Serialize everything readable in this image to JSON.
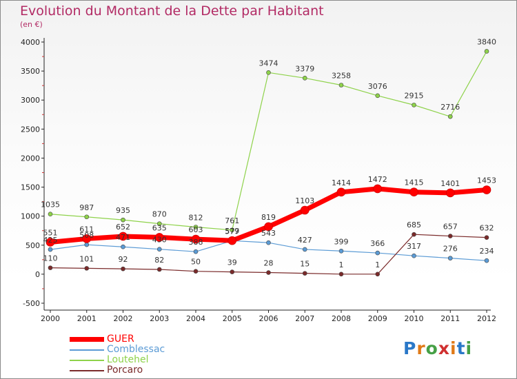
{
  "title": "Evolution du Montant de la Dette par Habitant",
  "subtitle": "(en €)",
  "logo": {
    "text": "Proxiti",
    "letter_colors": [
      "#2a78c8",
      "#e07a18",
      "#46a046",
      "#d03030",
      "#e07a18",
      "#2a78c8",
      "#46a046"
    ]
  },
  "chart_data": {
    "type": "line",
    "title": "Evolution du Montant de la Dette par Habitant",
    "ylabel": "(en €)",
    "x": [
      "2000",
      "2001",
      "2002",
      "2003",
      "2004",
      "2005",
      "2006",
      "2007",
      "2008",
      "2009",
      "2010",
      "2011",
      "2012"
    ],
    "ylim": [
      -500,
      4000
    ],
    "yticks": [
      "-500",
      "0",
      "500",
      "1000",
      "1500",
      "2000",
      "2500",
      "3000",
      "3500",
      "4000"
    ],
    "grid": false,
    "legend_position": "bottom-left",
    "series": [
      {
        "name": "GUER",
        "color": "#ff0000",
        "width": 7,
        "values": [
          551,
          611,
          652,
          635,
          603,
          579,
          819,
          1103,
          1414,
          1472,
          1415,
          1401,
          1453
        ]
      },
      {
        "name": "Comblessac",
        "color": "#5b9bd5",
        "width": 1.2,
        "values": [
          425,
          508,
          471,
          430,
          388,
          577,
          543,
          427,
          399,
          366,
          317,
          276,
          234
        ]
      },
      {
        "name": "Loutehel",
        "color": "#8ed24a",
        "width": 1.2,
        "values": [
          1035,
          987,
          935,
          870,
          812,
          761,
          3474,
          3379,
          3258,
          3076,
          2915,
          2716,
          3840
        ]
      },
      {
        "name": "Porcaro",
        "color": "#7a2a2a",
        "width": 1.2,
        "values": [
          110,
          101,
          92,
          82,
          50,
          39,
          28,
          15,
          1,
          1,
          685,
          657,
          632
        ]
      }
    ]
  }
}
